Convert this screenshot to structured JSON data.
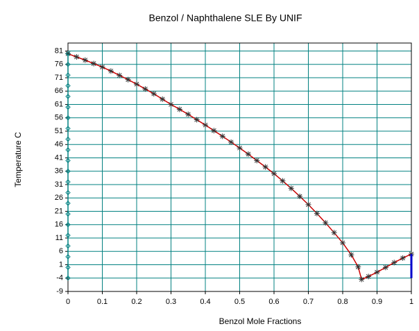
{
  "chart_data": {
    "type": "line",
    "title": "Benzol / Naphthalene SLE By UNIF",
    "xlabel": "Benzol Mole Fractions",
    "ylabel": "Temperature C",
    "xlim": [
      0,
      1
    ],
    "xticks": [
      0,
      0.1,
      0.2,
      0.3,
      0.4,
      0.5,
      0.6,
      0.7,
      0.8,
      0.9,
      1
    ],
    "ylim": [
      -9,
      84
    ],
    "yticks": [
      -9,
      -4,
      1,
      6,
      11,
      16,
      21,
      26,
      31,
      36,
      41,
      46,
      51,
      56,
      61,
      66,
      71,
      76,
      81
    ],
    "grid": true,
    "grid_color": "#008080",
    "series": [
      {
        "color": "#cc0000",
        "marker": "star",
        "marker_color": "#333333",
        "x": [
          0,
          0.025,
          0.05,
          0.075,
          0.1,
          0.125,
          0.15,
          0.175,
          0.2,
          0.225,
          0.25,
          0.275,
          0.3,
          0.325,
          0.35,
          0.375,
          0.4,
          0.425,
          0.45,
          0.475,
          0.5,
          0.525,
          0.55,
          0.575,
          0.6,
          0.625,
          0.65,
          0.675,
          0.7,
          0.725,
          0.75,
          0.775,
          0.8,
          0.825,
          0.845,
          0.855,
          0.875,
          0.9,
          0.925,
          0.95,
          0.975,
          1
        ],
        "values": [
          80,
          78.8,
          77.6,
          76.3,
          75,
          73.5,
          71.9,
          70.3,
          68.6,
          66.8,
          65,
          63,
          61,
          59.2,
          57.3,
          55.3,
          53.3,
          51.2,
          49.1,
          46.9,
          44.7,
          42.4,
          40,
          37.6,
          35.1,
          32.4,
          29.6,
          26.6,
          23.5,
          20.2,
          16.7,
          13,
          9.2,
          4.7,
          0.2,
          -4.5,
          -3.4,
          -1.8,
          0,
          1.8,
          3.5,
          5
        ]
      },
      {
        "color": "#008080",
        "marker": "diamond",
        "marker_color": "#008080",
        "x": [
          0,
          0,
          0,
          0,
          0,
          0,
          0,
          0,
          0,
          0,
          0,
          0,
          0,
          0,
          0,
          0,
          0,
          0,
          0,
          0,
          0,
          0
        ],
        "values": [
          80,
          76,
          72,
          68,
          64,
          60,
          56,
          52,
          48,
          44,
          40,
          36,
          32,
          28,
          24,
          20,
          16,
          12,
          8,
          4,
          0,
          -4
        ]
      },
      {
        "color": "#0000cc",
        "marker": "none",
        "marker_color": "#0000cc",
        "x": [
          1,
          1
        ],
        "values": [
          5,
          -4
        ]
      }
    ]
  }
}
